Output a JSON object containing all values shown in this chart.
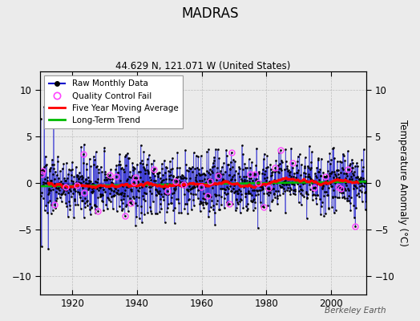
{
  "title": "MADRAS",
  "subtitle": "44.629 N, 121.071 W (United States)",
  "ylabel": "Temperature Anomaly (°C)",
  "watermark": "Berkeley Earth",
  "xlim": [
    1910,
    2011
  ],
  "ylim": [
    -12,
    12
  ],
  "yticks": [
    -10,
    -5,
    0,
    5,
    10
  ],
  "xticks": [
    1920,
    1940,
    1960,
    1980,
    2000
  ],
  "raw_color": "#0000cc",
  "ma_color": "#ff0000",
  "trend_color": "#00bb00",
  "qc_color": "#ff44ff",
  "bg_color": "#ebebeb",
  "seed": 137
}
